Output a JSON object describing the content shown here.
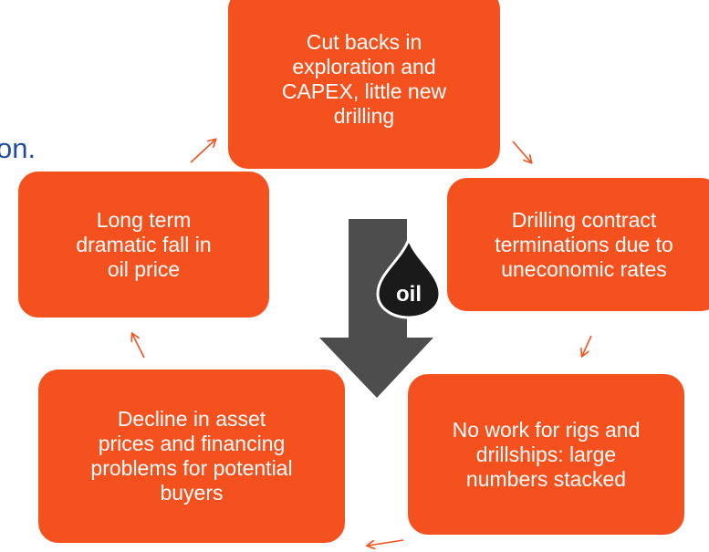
{
  "fragment": "on.",
  "nodes": [
    {
      "lines": [
        "Cut backs in",
        "exploration and",
        "CAPEX, little new",
        "drilling"
      ]
    },
    {
      "lines": [
        "Drilling contract",
        "terminations due to",
        "uneconomic rates"
      ]
    },
    {
      "lines": [
        "No work for rigs and",
        "drillships: large",
        "numbers stacked"
      ]
    },
    {
      "lines": [
        "Decline in asset",
        "prices and financing",
        "problems for potential",
        "buyers"
      ]
    },
    {
      "lines": [
        "Long term",
        "dramatic fall in",
        "oil price"
      ]
    }
  ],
  "icon": {
    "label": "oil"
  }
}
